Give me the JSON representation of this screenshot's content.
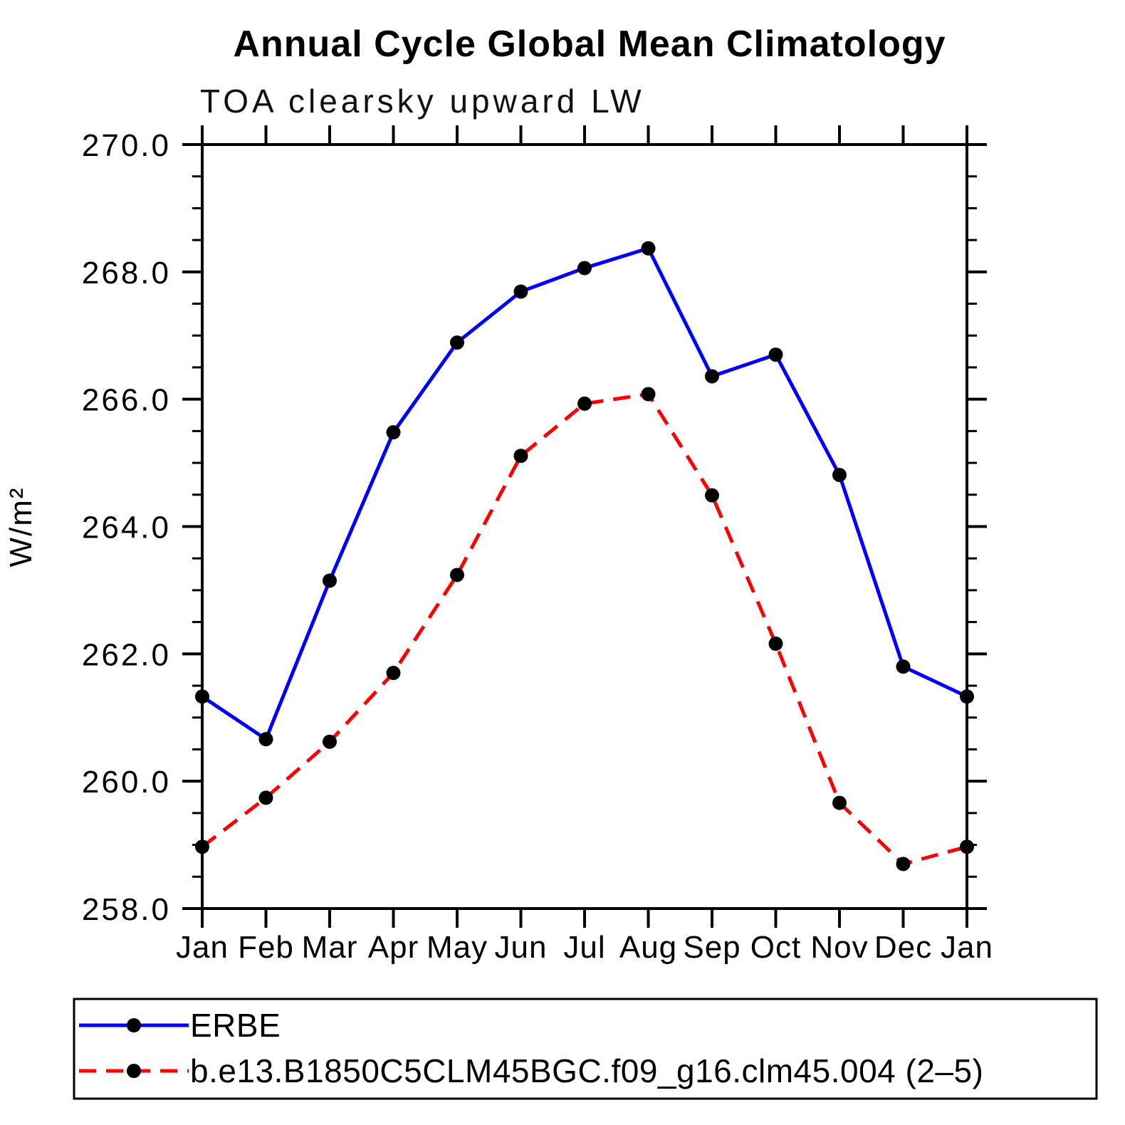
{
  "title": "Annual Cycle Global Mean Climatology",
  "subtitle": "TOA clearsky upward LW",
  "ylabel": "W/m²",
  "legend": {
    "position": "bottom",
    "entries": [
      {
        "label": "ERBE",
        "line_color": "#0000ff",
        "line_style": "solid",
        "marker": "filled-circle",
        "marker_color": "#000000"
      },
      {
        "label": "b.e13.B1850C5CLM45BGC.f09_g16.clm45.004 (2–5)",
        "line_color": "#ff0000",
        "line_style": "dashed",
        "marker": "filled-circle",
        "marker_color": "#000000"
      }
    ]
  },
  "chart_data": {
    "type": "line",
    "title": "Annual Cycle Global Mean Climatology",
    "subtitle": "TOA clearsky upward LW",
    "xlabel": "",
    "ylabel": "W/m²",
    "categories": [
      "Jan",
      "Feb",
      "Mar",
      "Apr",
      "May",
      "Jun",
      "Jul",
      "Aug",
      "Sep",
      "Oct",
      "Nov",
      "Dec",
      "Jan"
    ],
    "series": [
      {
        "name": "ERBE",
        "color": "#0000ff",
        "dash": "solid",
        "marker": "filled-circle",
        "marker_color": "#000000",
        "values": [
          261.33,
          260.66,
          263.15,
          265.48,
          266.89,
          267.69,
          268.06,
          268.37,
          266.36,
          266.7,
          264.81,
          261.8,
          261.33
        ]
      },
      {
        "name": "b.e13.B1850C5CLM45BGC.f09_g16.clm45.004 (2–5)",
        "color": "#ff0000",
        "dash": "dashed",
        "marker": "filled-circle",
        "marker_color": "#000000",
        "values": [
          258.97,
          259.74,
          260.62,
          261.7,
          263.24,
          265.11,
          265.93,
          266.08,
          264.49,
          262.16,
          259.66,
          258.7,
          258.97
        ]
      }
    ],
    "ylim": [
      258.0,
      270.0
    ],
    "ytick_major_step": 2.0,
    "ytick_minor_step": 0.5,
    "ytick_label_format": "one-decimal",
    "grid": false,
    "legend_position": "bottom",
    "axis_color": "#000000"
  }
}
